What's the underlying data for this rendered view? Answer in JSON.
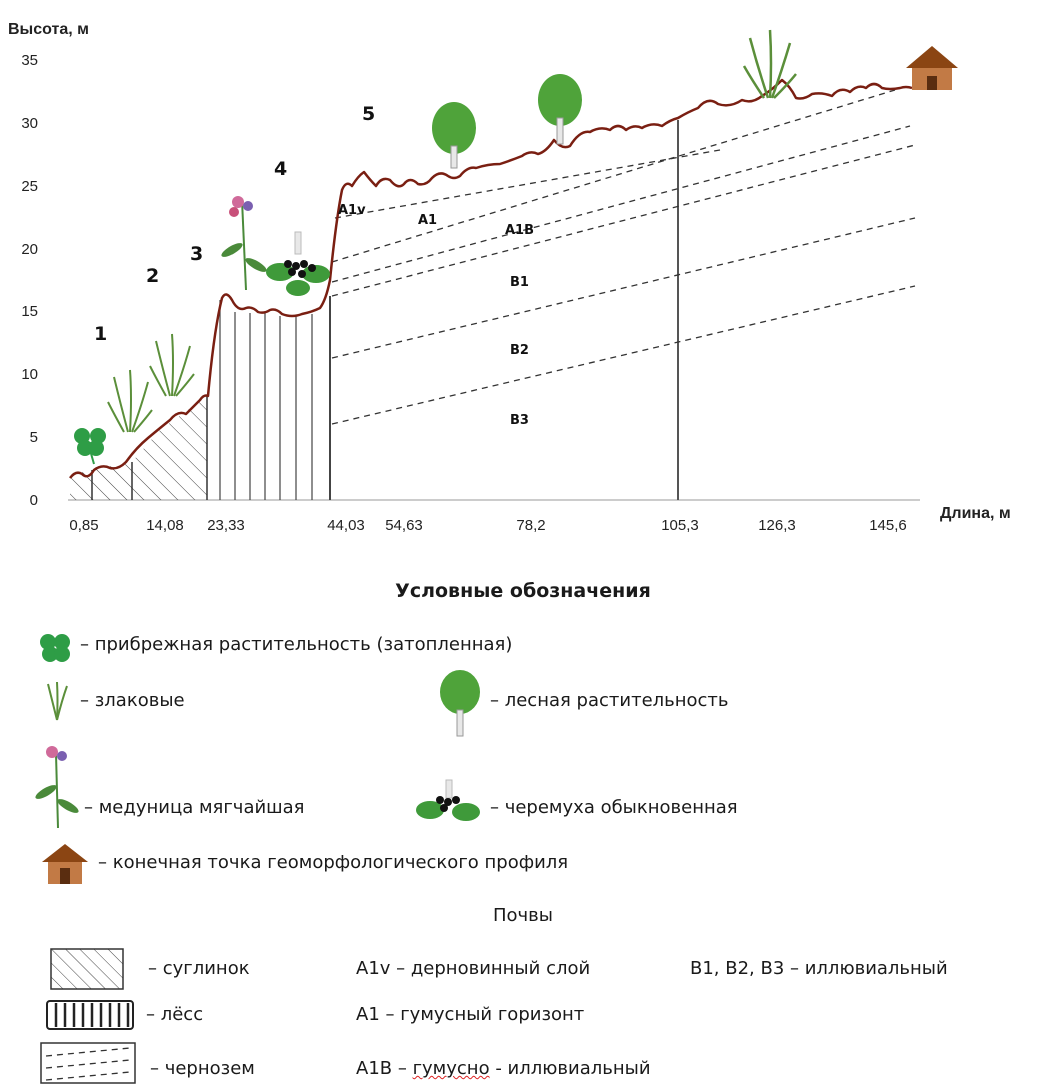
{
  "chart": {
    "y_axis_label": "Высота, м",
    "x_axis_label": "Длина, м",
    "y_ticks": [
      "0",
      "5",
      "10",
      "15",
      "20",
      "25",
      "30",
      "35"
    ],
    "x_ticks": [
      "0,85",
      "14,08",
      "23,33",
      "44,03",
      "54,63",
      "78,2",
      "105,3",
      "126,3",
      "145,6"
    ],
    "zones": [
      "1",
      "2",
      "3",
      "4",
      "5"
    ],
    "horizons": [
      "A1v",
      "A1",
      "A1B",
      "B1",
      "B2",
      "B3"
    ]
  },
  "chart_data": {
    "type": "line",
    "x_unit": "м",
    "y_unit": "м",
    "ylim": [
      0,
      35
    ],
    "profile_heights_approx": [
      {
        "x": 0.85,
        "y": 2
      },
      {
        "x": 14.08,
        "y": 6
      },
      {
        "x": 23.33,
        "y": 15
      },
      {
        "x": 44.03,
        "y": 23
      },
      {
        "x": 54.63,
        "y": 25
      },
      {
        "x": 78.2,
        "y": 27
      },
      {
        "x": 105.3,
        "y": 30
      },
      {
        "x": 126.3,
        "y": 32
      },
      {
        "x": 145.6,
        "y": 32.5
      }
    ]
  },
  "legend": {
    "title": "Условные обозначения",
    "items": {
      "coastal": "– прибрежная растительность (затопленная)",
      "grass": "– злаковые",
      "forest": "– лесная растительность",
      "lungwort": "– медуница мягчайшая",
      "cherry": "– черемуха обыкновенная",
      "endpoint": "– конечная точка геоморфологического профиля"
    },
    "soils_title": "Почвы",
    "soils": {
      "loam": "– суглинок",
      "loess": "– лёсс",
      "chernozem": "– чернозем",
      "a1v_prefix": "A1v – дерновинный слой",
      "b_prefix": "B1, B2, B3 – иллювиальный",
      "a1_desc": "A1 – гумусный горизонт",
      "a1b_lead": "A1B – ",
      "a1b_word": "гумусно",
      "a1b_tail": " - иллювиальный"
    }
  },
  "colors": {
    "profile_line": "#7a1f12",
    "dashed_lines": "#333333",
    "clover": "#2e9d46",
    "grass": "#5b8f3a",
    "tree_leaves": "#4fa33a",
    "house": "#a0522d"
  }
}
